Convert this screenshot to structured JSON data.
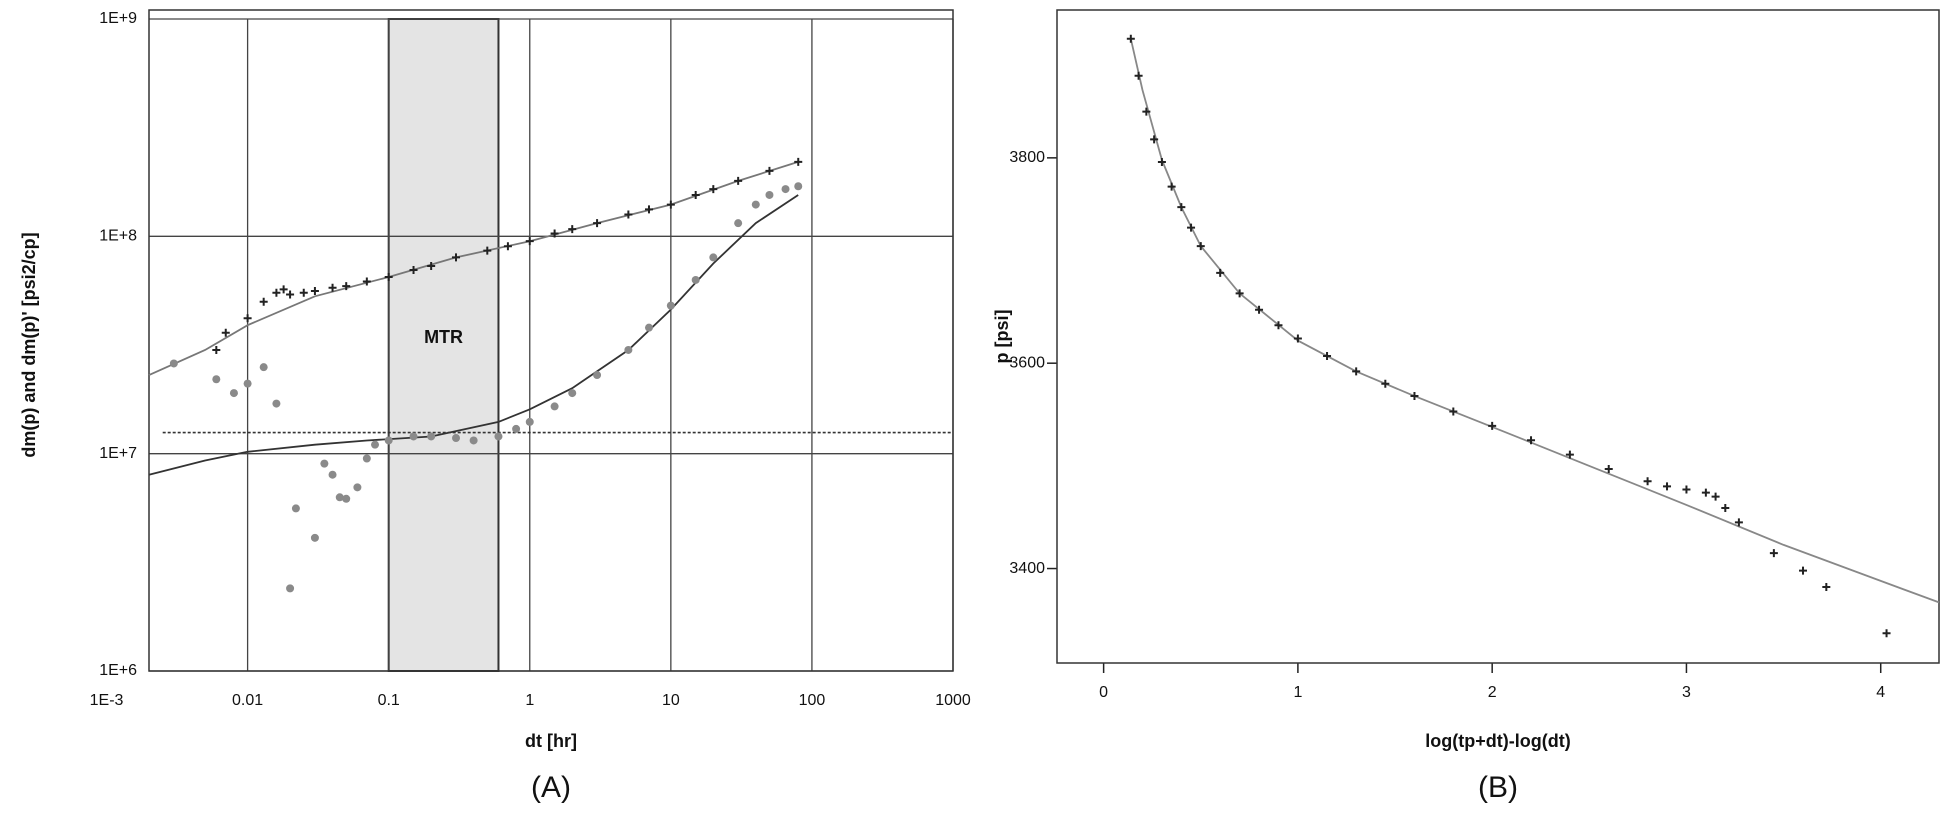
{
  "chart_data": [
    {
      "type": "scatter",
      "xscale": "log",
      "yscale": "log",
      "grid": true,
      "xlabel": "dt [hr]",
      "ylabel": "dm(p) and dm(p)'  [psi2/cp]",
      "caption": "(A)",
      "xlim": [
        0.002,
        1000
      ],
      "ylim": [
        1000000,
        1000000000
      ],
      "xticks": [
        {
          "value": 0.001,
          "label": "1E-3"
        },
        0.01,
        0.1,
        1,
        10,
        100,
        1000
      ],
      "yticks": [
        {
          "value": 1000000,
          "label": "1E+6"
        },
        {
          "value": 10000000,
          "label": "1E+7"
        },
        {
          "value": 100000000,
          "label": "1E+8"
        },
        {
          "value": 1000000000,
          "label": "1E+9"
        }
      ],
      "shade": [
        0.1,
        0.6
      ],
      "shade_color": "#e4e4e4",
      "annotation": "MTR",
      "series": [
        {
          "style": "line",
          "color": "#777777",
          "x": [
            0.002,
            0.005,
            0.01,
            0.03,
            0.1,
            0.3,
            1,
            3,
            10,
            30,
            80
          ],
          "values": [
            23000000,
            30000000,
            39000000,
            53000000,
            65000000,
            80000000,
            95000000,
            115000000,
            140000000,
            180000000,
            220000000
          ]
        },
        {
          "style": "line",
          "color": "#333333",
          "x": [
            0.002,
            0.005,
            0.01,
            0.03,
            0.07,
            0.2,
            0.6,
            1,
            2,
            5,
            10,
            20,
            40,
            80
          ],
          "values": [
            8000000,
            9300000,
            10200000,
            11000000,
            11500000,
            12000000,
            14000000,
            16000000,
            20000000,
            30000000,
            46000000,
            75000000,
            115000000,
            155000000
          ]
        },
        {
          "style": "dashed",
          "color": "#333333",
          "x": [
            0.0025,
            1000
          ],
          "values": [
            12500000,
            12500000
          ]
        },
        {
          "style": "markers",
          "marker": "plus",
          "color": "#222222",
          "x": [
            0.006,
            0.007,
            0.01,
            0.013,
            0.016,
            0.018,
            0.02,
            0.025,
            0.03,
            0.04,
            0.05,
            0.07,
            0.1,
            0.15,
            0.2,
            0.3,
            0.5,
            0.7,
            1,
            1.5,
            2,
            3,
            5,
            7,
            10,
            15,
            20,
            30,
            50,
            80
          ],
          "values": [
            30000000,
            36000000,
            42000000,
            50000000,
            55000000,
            57000000,
            54000000,
            55000000,
            56000000,
            58000000,
            59000000,
            62000000,
            65000000,
            70000000,
            73000000,
            80000000,
            86000000,
            90000000,
            95000000,
            103000000,
            108000000,
            115000000,
            126000000,
            133000000,
            140000000,
            155000000,
            165000000,
            180000000,
            200000000,
            220000000
          ]
        },
        {
          "style": "markers",
          "marker": "circle",
          "color": "#8a8a8a",
          "x": [
            0.003,
            0.006,
            0.008,
            0.01,
            0.013,
            0.016,
            0.02,
            0.022,
            0.03,
            0.035,
            0.04,
            0.045,
            0.05,
            0.06,
            0.07,
            0.08,
            0.1,
            0.15,
            0.2,
            0.3,
            0.4,
            0.6,
            0.8,
            1,
            1.5,
            2,
            3,
            5,
            7,
            10,
            15,
            20,
            30,
            40,
            50,
            65,
            80
          ],
          "values": [
            26000000,
            22000000,
            19000000,
            21000000,
            25000000,
            17000000,
            2400000,
            5600000,
            4100000,
            9000000,
            8000000,
            6300000,
            6200000,
            7000000,
            9500000,
            11000000,
            11500000,
            12000000,
            12000000,
            11800000,
            11500000,
            12000000,
            13000000,
            14000000,
            16500000,
            19000000,
            23000000,
            30000000,
            38000000,
            48000000,
            63000000,
            80000000,
            115000000,
            140000000,
            155000000,
            165000000,
            170000000
          ]
        }
      ]
    },
    {
      "type": "scatter",
      "xscale": "linear",
      "yscale": "linear",
      "grid": false,
      "xlabel": "log(tp+dt)-log(dt)",
      "ylabel": "p [psi]",
      "caption": "(B)",
      "xlim": [
        -0.24,
        4.3
      ],
      "ylim": [
        3308,
        3944
      ],
      "xticks": [
        0,
        1,
        2,
        3,
        4
      ],
      "yticks": [
        3400,
        3600,
        3800
      ],
      "series": [
        {
          "style": "line",
          "color": "#888888",
          "x": [
            0.14,
            0.2,
            0.3,
            0.4,
            0.5,
            0.7,
            1.0,
            1.3,
            1.6,
            2.0,
            2.5,
            3.0,
            3.5,
            4.0,
            4.3
          ],
          "values": [
            3916,
            3866,
            3798,
            3752,
            3714,
            3668,
            3622,
            3592,
            3568,
            3538,
            3500,
            3462,
            3423,
            3388,
            3367
          ]
        },
        {
          "style": "markers",
          "marker": "plus",
          "color": "#222222",
          "x": [
            0.14,
            0.18,
            0.22,
            0.26,
            0.3,
            0.35,
            0.4,
            0.45,
            0.5,
            0.6,
            0.7,
            0.8,
            0.9,
            1.0,
            1.15,
            1.3,
            1.45,
            1.6,
            1.8,
            2.0,
            2.2,
            2.4,
            2.6,
            2.8,
            2.9,
            3.0,
            3.1,
            3.15,
            3.2,
            3.27,
            3.45,
            3.6,
            3.72,
            4.03
          ],
          "values": [
            3916,
            3880,
            3845,
            3818,
            3796,
            3772,
            3752,
            3732,
            3714,
            3688,
            3668,
            3652,
            3637,
            3624,
            3607,
            3592,
            3580,
            3568,
            3553,
            3539,
            3525,
            3511,
            3497,
            3485,
            3480,
            3477,
            3474,
            3470,
            3459,
            3445,
            3415,
            3398,
            3382,
            3337
          ]
        }
      ]
    }
  ]
}
